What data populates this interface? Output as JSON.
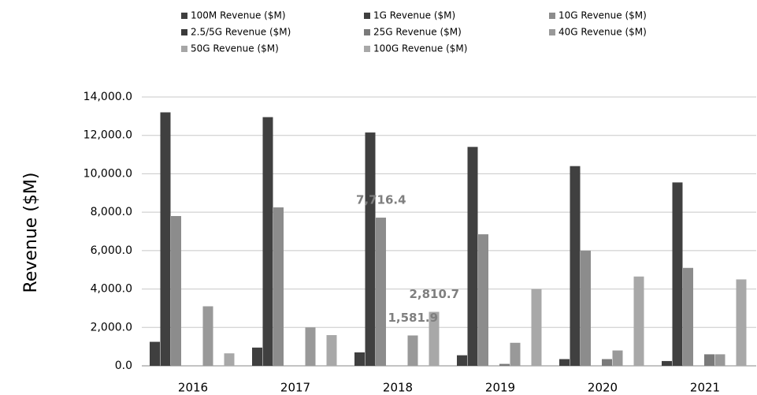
{
  "chart_data": {
    "type": "bar",
    "y_label": "Revenue ($M)",
    "categories": [
      "2016",
      "2017",
      "2018",
      "2019",
      "2020",
      "2021"
    ],
    "series": [
      {
        "name": "100M Revenue ($M)",
        "color": "#3f3f3f",
        "values": [
          1250,
          950,
          700,
          550,
          350,
          250
        ]
      },
      {
        "name": "1G Revenue ($M)",
        "color": "#404040",
        "values": [
          13200,
          12950,
          12150,
          11400,
          10400,
          9550
        ]
      },
      {
        "name": "10G Revenue ($M)",
        "color": "#8c8c8c",
        "values": [
          7800,
          8250,
          7716.4,
          6850,
          6000,
          5100
        ],
        "value_labels": [
          null,
          null,
          "7,716.4",
          null,
          null,
          null
        ]
      },
      {
        "name": "2.5/5G Revenue ($M)",
        "color": "#3a3a3a",
        "values": [
          0,
          0,
          0,
          0,
          0,
          0
        ]
      },
      {
        "name": "25G Revenue ($M)",
        "color": "#7a7a7a",
        "values": [
          0,
          0,
          0,
          100,
          350,
          600
        ]
      },
      {
        "name": "40G Revenue ($M)",
        "color": "#999999",
        "values": [
          3100,
          2000,
          1581.9,
          1200,
          800,
          600
        ],
        "value_labels": [
          null,
          null,
          "1,581.9",
          null,
          null,
          null
        ]
      },
      {
        "name": "50G Revenue ($M)",
        "color": "#a6a6a6",
        "values": [
          0,
          0,
          0,
          0,
          0,
          0
        ]
      },
      {
        "name": "100G Revenue ($M)",
        "color": "#a8a8a8",
        "values": [
          650,
          1600,
          2810.7,
          4000,
          4650,
          4500
        ],
        "value_labels": [
          null,
          null,
          "2,810.7",
          null,
          null,
          null
        ]
      }
    ],
    "ylim": [
      0,
      14000
    ],
    "yticks": [
      {
        "value": 0,
        "label": "0.0"
      },
      {
        "value": 2000,
        "label": "2,000.0"
      },
      {
        "value": 4000,
        "label": "4,000.0"
      },
      {
        "value": 6000,
        "label": "6,000.0"
      },
      {
        "value": 8000,
        "label": "8,000.0"
      },
      {
        "value": 10000,
        "label": "10,000.0"
      },
      {
        "value": 12000,
        "label": "12,000.0"
      },
      {
        "value": 14000,
        "label": "14,000.0"
      }
    ],
    "grid": true
  }
}
